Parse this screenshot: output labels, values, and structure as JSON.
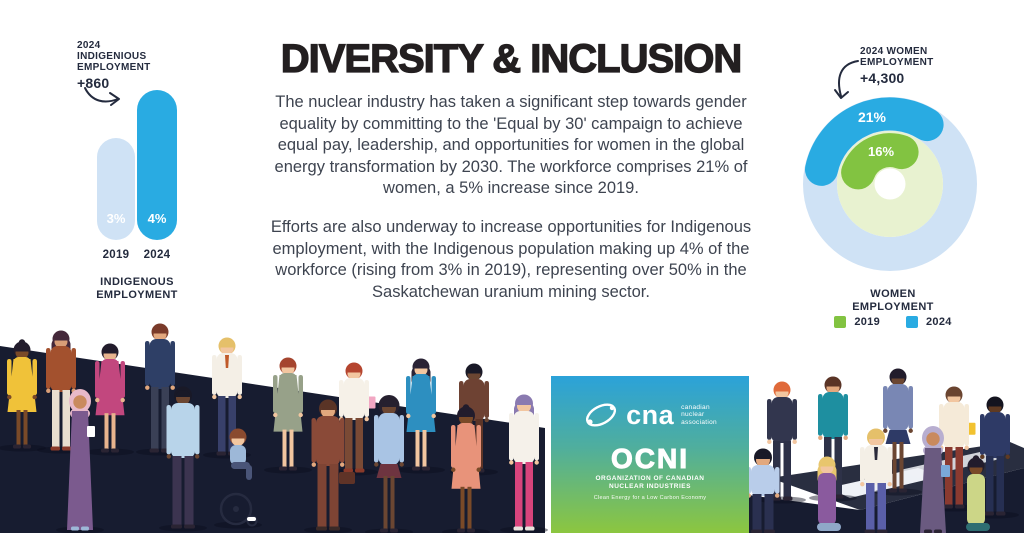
{
  "title": "DIVERSITY & INCLUSION",
  "body": {
    "p1": "The nuclear industry has taken a significant step towards gender equality by committing to the 'Equal by 30' campaign to achieve equal pay, leadership, and opportunities for women in the global energy transformation by 2030. The workforce comprises 21% of women, a 5% increase since 2019.",
    "p2": "Efforts are also underway to increase opportunities for Indigenous employment, with the Indigenous population making up 4% of the workforce (rising from 3% in 2019), representing over 50% in the Saskatchewan uranium mining sector."
  },
  "indigenous": {
    "annotation": {
      "l1": "2024",
      "l2": "INDIGENIOUS",
      "l3": "EMPLOYMENT",
      "value": "+860"
    },
    "bar_2019": {
      "year": "2019",
      "value_label": "3%"
    },
    "bar_2024": {
      "year": "2024",
      "value_label": "4%"
    },
    "title_l1": "INDIGENOUS",
    "title_l2": "EMPLOYMENT"
  },
  "women": {
    "annotation": {
      "l1": "2024 WOMEN",
      "l2": "EMPLOYMENT",
      "value": "+4,300"
    },
    "label_2024": "21%",
    "label_2019": "16%",
    "title_l1": "WOMEN",
    "title_l2": "EMPLOYMENT",
    "legend": {
      "y2019": "2019",
      "y2024": "2024"
    }
  },
  "logos": {
    "cna": {
      "name": "cna",
      "sub1": "canadian",
      "sub2": "nuclear",
      "sub3": "association"
    },
    "ocni": {
      "name": "OCNI",
      "org1": "ORGANIZATION OF CANADIAN",
      "org2": "NUCLEAR INDUSTRIES",
      "tagline": "Clean Energy for a Low Carbon Economy"
    }
  },
  "colors": {
    "blue": "#29abe2",
    "light_blue": "#cfe2f5",
    "green": "#82c341",
    "light_green": "#e8f2d0",
    "navy_text": "#242b3e",
    "dark_bg": "#171c30",
    "title_black": "#231f20",
    "body_gray": "#3e4450"
  },
  "chart_data": [
    {
      "type": "bar",
      "title": "INDIGENOUS EMPLOYMENT",
      "categories": [
        "2019",
        "2024"
      ],
      "values": [
        3,
        4
      ],
      "unit": "%",
      "annotation": "2024 INDIGENIOUS EMPLOYMENT +860",
      "colors": [
        "#cfe2f5",
        "#29abe2"
      ],
      "ylim": [
        0,
        4
      ]
    },
    {
      "type": "pie",
      "subtype": "nested-donut",
      "title": "WOMEN EMPLOYMENT",
      "series": [
        {
          "name": "2019",
          "value": 16,
          "color": "#82c341",
          "ring": "inner"
        },
        {
          "name": "2024",
          "value": 21,
          "color": "#29abe2",
          "ring": "outer"
        }
      ],
      "unit": "%",
      "annotation": "2024 WOMEN EMPLOYMENT +4,300",
      "legend_position": "bottom"
    }
  ]
}
